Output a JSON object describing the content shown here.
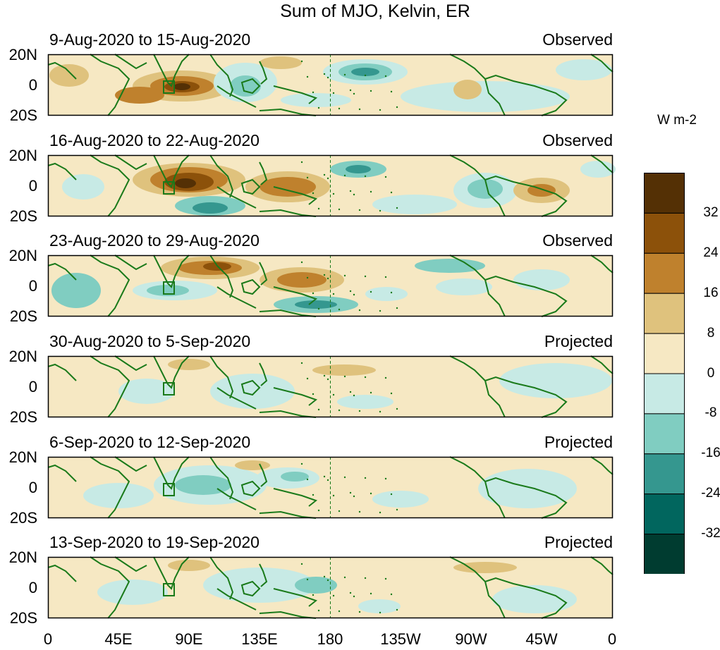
{
  "title": "Sum of MJO, Kelvin, ER",
  "units": "W m-2",
  "lat_labels": [
    "20N",
    "0",
    "20S"
  ],
  "lon_labels": [
    "0",
    "45E",
    "90E",
    "135E",
    "180",
    "135W",
    "90W",
    "45W",
    "0"
  ],
  "colorbar": {
    "tick_labels": [
      "32",
      "24",
      "16",
      "8",
      "0",
      "-8",
      "-16",
      "-24",
      "-32"
    ],
    "colors": [
      "#543005",
      "#8c510a",
      "#bf812d",
      "#dfc27d",
      "#f6e8c3",
      "#c7eae5",
      "#80cdc1",
      "#35978f",
      "#01665e",
      "#003c30"
    ]
  },
  "colors": {
    "coastline": "#1a7a1a",
    "dateline": "#1a7a1a",
    "frame": "#000000"
  },
  "panels": [
    {
      "date_range": "9-Aug-2020 to 15-Aug-2020",
      "status": "Observed"
    },
    {
      "date_range": "16-Aug-2020 to 22-Aug-2020",
      "status": "Observed"
    },
    {
      "date_range": "23-Aug-2020 to 29-Aug-2020",
      "status": "Observed"
    },
    {
      "date_range": "30-Aug-2020 to 5-Sep-2020",
      "status": "Projected"
    },
    {
      "date_range": "6-Sep-2020 to 12-Sep-2020",
      "status": "Projected"
    },
    {
      "date_range": "13-Sep-2020 to 19-Sep-2020",
      "status": "Projected"
    }
  ]
}
